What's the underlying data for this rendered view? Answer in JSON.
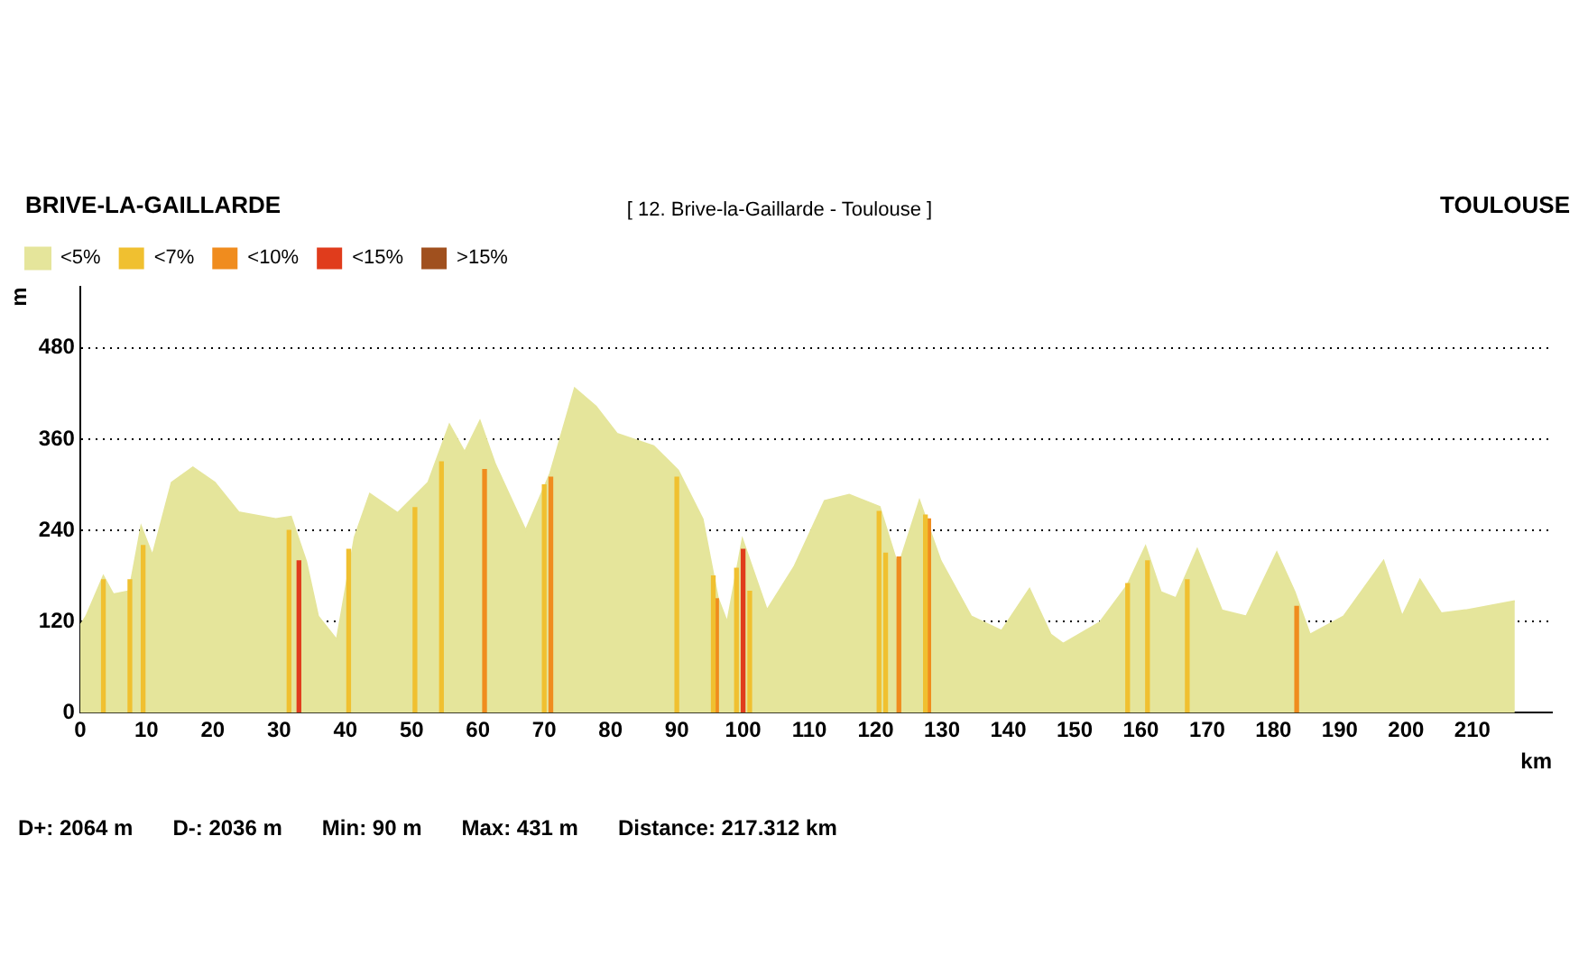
{
  "chart_data": {
    "type": "area",
    "title": "[ 12. Brive-la-Gaillarde - Toulouse ]",
    "xlabel": "km",
    "ylabel": "m",
    "annotations": [
      "BRIVE-LA-GAILLARDE",
      "TOULOUSE",
      "D+: 2064 m",
      "D-: 2036 m",
      "Min: 90 m",
      "Max: 431 m",
      "Distance: 217.312 km"
    ],
    "xlim": [
      0,
      222
    ],
    "xticks": [
      0,
      10,
      20,
      30,
      40,
      50,
      60,
      70,
      80,
      90,
      100,
      110,
      120,
      130,
      140,
      150,
      160,
      170,
      180,
      190,
      200,
      210
    ],
    "ylim": [
      0,
      560
    ],
    "yticks": [
      0,
      120,
      240,
      360,
      480
    ],
    "grid": "y",
    "legend": "top left",
    "series": [
      {
        "name": "<5%",
        "color": "#e5e59b",
        "x": [
          0,
          0.9,
          3.5,
          5,
          7.4,
          9.2,
          10.9,
          13.8,
          17,
          20.3,
          23.9,
          29.5,
          31.8,
          34.1,
          35.9,
          38.7,
          41.4,
          43.7,
          47.9,
          52.5,
          55.7,
          58,
          60.3,
          62.6,
          67.2,
          70.9,
          74.6,
          77.8,
          81,
          86.5,
          90.2,
          93.9,
          96.2,
          97.6,
          99.9,
          103.6,
          107.7,
          112.3,
          116,
          120.6,
          123.4,
          126.6,
          129.8,
          134.4,
          139,
          143.2,
          146.4,
          148.3,
          153.8,
          157.9,
          160.7,
          163,
          165.3,
          168.5,
          172.2,
          175.9,
          180.5,
          183.2,
          185.5,
          190.6,
          196.6,
          199.4,
          202.1,
          205.3,
          209,
          216.4
        ],
        "values": [
          115,
          127,
          180,
          156,
          160,
          245,
          207,
          303,
          323,
          303,
          264,
          255,
          258,
          199,
          127,
          96,
          231,
          288,
          263,
          303,
          379,
          343,
          384,
          327,
          240,
          315,
          427,
          403,
          367,
          351,
          319,
          255,
          151,
          119,
          228,
          135,
          192,
          279,
          287,
          271,
          192,
          279,
          200,
          127,
          108,
          163,
          103,
          91,
          119,
          167,
          219,
          159,
          151,
          215,
          135,
          127,
          211,
          159,
          103,
          127,
          200,
          127,
          175,
          131,
          135,
          147
        ]
      },
      {
        "name": "<7%",
        "type": "bar",
        "color": "#f0c030",
        "x": [
          3.5,
          7.5,
          9.5,
          31.5,
          40.5,
          50.5,
          54.5,
          70,
          90,
          95.5,
          99,
          101,
          120.5,
          121.5,
          127.5,
          158,
          161,
          167
        ],
        "values": [
          175,
          175,
          220,
          240,
          215,
          270,
          330,
          300,
          310,
          180,
          190,
          160,
          265,
          210,
          260,
          170,
          200,
          175
        ]
      },
      {
        "name": "<10%",
        "type": "bar",
        "color": "#f08c1e",
        "x": [
          61,
          71,
          96,
          123.5,
          128,
          183.5
        ],
        "values": [
          320,
          310,
          150,
          205,
          255,
          140
        ]
      },
      {
        "name": "<15%",
        "type": "bar",
        "color": "#e03c1c",
        "x": [
          33,
          100
        ],
        "values": [
          200,
          215
        ]
      },
      {
        "name": ">15%",
        "type": "bar",
        "color": "#a0501e"
      }
    ]
  }
}
